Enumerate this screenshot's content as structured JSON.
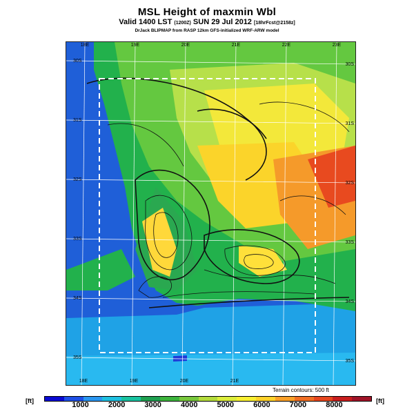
{
  "title": "MSL Height of maxmin Wbl",
  "subtitle": {
    "part1": "Valid 1400 LST ",
    "part2": "(1200Z)",
    "part3": " SUN 29 Jul 2012 ",
    "part4": "[18hrFcst@2158z]"
  },
  "credit": "DrJack BLIPMAP from RASP 12km GFS-initialized WRF-ARW model",
  "terrain_note": "Terrain contours: 500 ft",
  "colorbar": {
    "unit": "[ft]",
    "colors": [
      "#0a0ad2",
      "#1e50e6",
      "#2a96f0",
      "#1fc0e0",
      "#19c3a0",
      "#1ea050",
      "#3cb43c",
      "#78c83c",
      "#b4dc3c",
      "#dcee3c",
      "#f8f032",
      "#ffd22a",
      "#faa028",
      "#f06e23",
      "#e6461e",
      "#c81e1e",
      "#a01428"
    ],
    "ticks": [
      {
        "label": "1000",
        "value": 1000
      },
      {
        "label": "2000",
        "value": 2000
      },
      {
        "label": "3000",
        "value": 3000
      },
      {
        "label": "4000",
        "value": 4000
      },
      {
        "label": "5000",
        "value": 5000
      },
      {
        "label": "6000",
        "value": 6000
      },
      {
        "label": "7000",
        "value": 7000
      },
      {
        "label": "8000",
        "value": 8000
      }
    ],
    "range": [
      0,
      9000
    ]
  },
  "longitudes": [
    {
      "label": "18E",
      "value": 18
    },
    {
      "label": "19E",
      "value": 19
    },
    {
      "label": "20E",
      "value": 20
    },
    {
      "label": "21E",
      "value": 21
    },
    {
      "label": "22E",
      "value": 22
    },
    {
      "label": "23E",
      "value": 23
    }
  ],
  "latitudes": [
    {
      "label": "30S",
      "value": -30
    },
    {
      "label": "31S",
      "value": -31
    },
    {
      "label": "32S",
      "value": -32
    },
    {
      "label": "33S",
      "value": -33
    },
    {
      "label": "34S",
      "value": -34
    },
    {
      "label": "35S",
      "value": -35
    }
  ]
}
